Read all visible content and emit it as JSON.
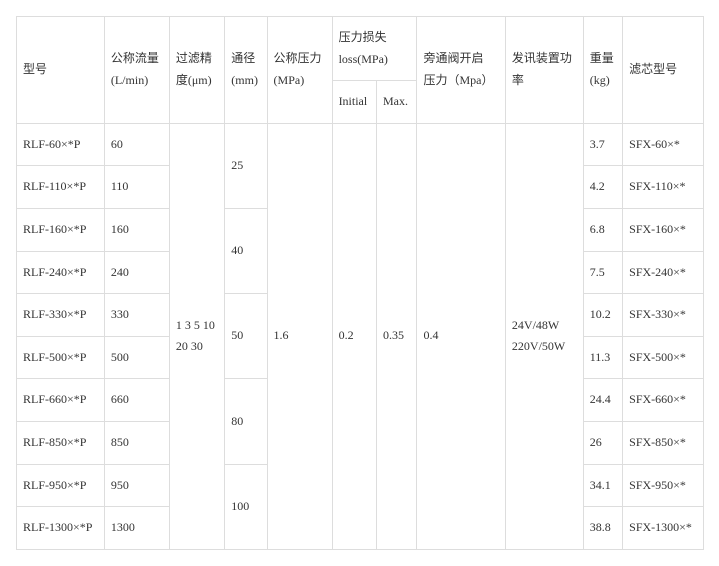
{
  "table": {
    "headers": {
      "model": "型号",
      "flow_rate": "公称流量\n(L/min)",
      "filter_precision": "过滤精\n度(μm)",
      "diameter": "通径\n(mm)",
      "nominal_pressure": "公称压力\n(MPa)",
      "pressure_loss_group": "压力损失\nloss(MPa)",
      "pressure_loss_initial": "Initial",
      "pressure_loss_max": "Max.",
      "bypass_valve": "旁通阀开启\n压力（Mpa）",
      "signal_power": "发讯装置功\n率",
      "weight": "重量\n(kg)",
      "filter_model": "滤芯型号"
    },
    "rows": [
      {
        "model": "RLF-60×*P",
        "flow": "60",
        "weight": "3.7",
        "filter": "SFX-60×*"
      },
      {
        "model": "RLF-110×*P",
        "flow": "110",
        "weight": "4.2",
        "filter": "SFX-110×*"
      },
      {
        "model": "RLF-160×*P",
        "flow": "160",
        "weight": "6.8",
        "filter": "SFX-160×*"
      },
      {
        "model": "RLF-240×*P",
        "flow": "240",
        "weight": "7.5",
        "filter": "SFX-240×*"
      },
      {
        "model": "RLF-330×*P",
        "flow": "330",
        "weight": "10.2",
        "filter": "SFX-330×*"
      },
      {
        "model": "RLF-500×*P",
        "flow": "500",
        "weight": "11.3",
        "filter": "SFX-500×*"
      },
      {
        "model": "RLF-660×*P",
        "flow": "660",
        "weight": "24.4",
        "filter": "SFX-660×*"
      },
      {
        "model": "RLF-850×*P",
        "flow": "850",
        "weight": "26",
        "filter": "SFX-850×*"
      },
      {
        "model": "RLF-950×*P",
        "flow": "950",
        "weight": "34.1",
        "filter": "SFX-950×*"
      },
      {
        "model": "RLF-1300×*P",
        "flow": "1300",
        "weight": "38.8",
        "filter": "SFX-1300×*"
      }
    ],
    "merged": {
      "filter_precision": "1 3 5 10\n20 30",
      "diameter": [
        "25",
        "40",
        "50",
        "80",
        "100"
      ],
      "nominal_pressure": "1.6",
      "pressure_loss_initial": "0.2",
      "pressure_loss_max": "0.35",
      "bypass_valve": "0.4",
      "signal_power": "24V/48W\n220V/50W"
    }
  },
  "style": {
    "border_color": "#dddddd",
    "text_color": "#333333",
    "font_size": 12
  }
}
